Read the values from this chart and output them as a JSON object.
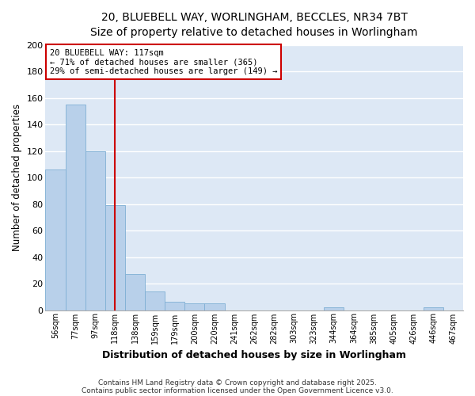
{
  "title_line1": "20, BLUEBELL WAY, WORLINGHAM, BECCLES, NR34 7BT",
  "title_line2": "Size of property relative to detached houses in Worlingham",
  "xlabel": "Distribution of detached houses by size in Worlingham",
  "ylabel": "Number of detached properties",
  "categories": [
    "56sqm",
    "77sqm",
    "97sqm",
    "118sqm",
    "138sqm",
    "159sqm",
    "179sqm",
    "200sqm",
    "220sqm",
    "241sqm",
    "262sqm",
    "282sqm",
    "303sqm",
    "323sqm",
    "344sqm",
    "364sqm",
    "385sqm",
    "405sqm",
    "426sqm",
    "446sqm",
    "467sqm"
  ],
  "values": [
    106,
    155,
    120,
    79,
    27,
    14,
    6,
    5,
    5,
    0,
    0,
    0,
    0,
    0,
    2,
    0,
    0,
    0,
    0,
    2,
    0
  ],
  "bar_color": "#b8d0ea",
  "bar_edge_color": "#7fafd4",
  "bar_width": 1.0,
  "redline_index": 3,
  "annotation_line1": "20 BLUEBELL WAY: 117sqm",
  "annotation_line2": "← 71% of detached houses are smaller (365)",
  "annotation_line3": "29% of semi-detached houses are larger (149) →",
  "annotation_box_color": "#ffffff",
  "annotation_box_edge_color": "#cc0000",
  "ylim": [
    0,
    200
  ],
  "yticks": [
    0,
    20,
    40,
    60,
    80,
    100,
    120,
    140,
    160,
    180,
    200
  ],
  "background_color": "#dde8f5",
  "grid_color": "#ffffff",
  "footer_line1": "Contains HM Land Registry data © Crown copyright and database right 2025.",
  "footer_line2": "Contains public sector information licensed under the Open Government Licence v3.0."
}
